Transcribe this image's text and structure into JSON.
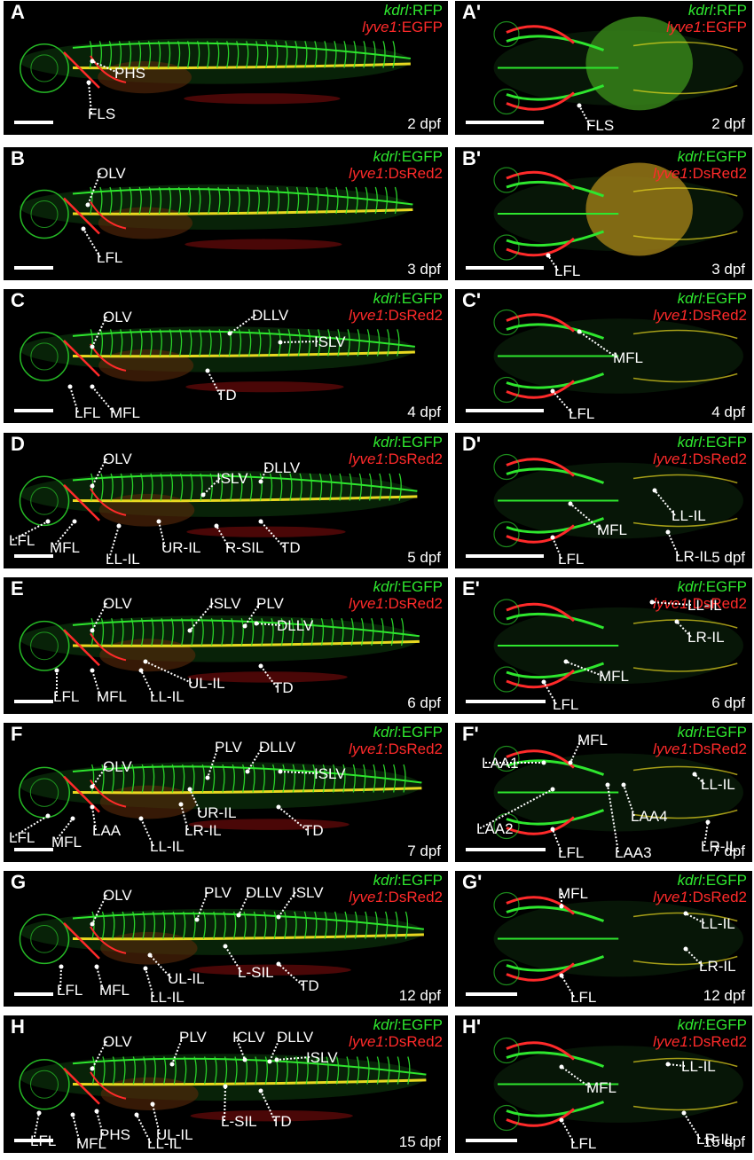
{
  "colors": {
    "green": "#2ee62e",
    "red": "#ff2a2a",
    "yellow": "#e8d820",
    "bg": "#000000"
  },
  "panels": [
    {
      "letter": "A",
      "stage": "2 dpf",
      "green_label": "kdrl",
      "green_suffix": ":RFP",
      "red_label": "lyve1",
      "red_suffix": ":EGFP",
      "labels": [
        "PHS",
        "FLS"
      ]
    },
    {
      "letter": "A'",
      "stage": "2 dpf",
      "green_label": "kdrl",
      "green_suffix": ":RFP",
      "red_label": "lyve1",
      "red_suffix": ":EGFP",
      "labels": [
        "FLS"
      ]
    },
    {
      "letter": "B",
      "stage": "3 dpf",
      "green_label": "kdrl",
      "green_suffix": ":EGFP",
      "red_label": "lyve1",
      "red_suffix": ":DsRed2",
      "labels": [
        "OLV",
        "LFL"
      ]
    },
    {
      "letter": "B'",
      "stage": "3 dpf",
      "green_label": "kdrl",
      "green_suffix": ":EGFP",
      "red_label": "lyve1",
      "red_suffix": ":DsRed2",
      "labels": [
        "LFL"
      ]
    },
    {
      "letter": "C",
      "stage": "4 dpf",
      "green_label": "kdrl",
      "green_suffix": ":EGFP",
      "red_label": "lyve1",
      "red_suffix": ":DsRed2",
      "labels": [
        "OLV",
        "DLLV",
        "ISLV",
        "TD",
        "LFL",
        "MFL"
      ]
    },
    {
      "letter": "C'",
      "stage": "4 dpf",
      "green_label": "kdrl",
      "green_suffix": ":EGFP",
      "red_label": "lyve1",
      "red_suffix": ":DsRed2",
      "labels": [
        "MFL",
        "LFL"
      ]
    },
    {
      "letter": "D",
      "stage": "5 dpf",
      "green_label": "kdrl",
      "green_suffix": ":EGFP",
      "red_label": "lyve1",
      "red_suffix": ":DsRed2",
      "labels": [
        "OLV",
        "ISLV",
        "DLLV",
        "LFL",
        "MFL",
        "LL-IL",
        "UR-IL",
        "R-SIL",
        "TD"
      ]
    },
    {
      "letter": "D'",
      "stage": "5 dpf",
      "green_label": "kdrl",
      "green_suffix": ":EGFP",
      "red_label": "lyve1",
      "red_suffix": ":DsRed2",
      "labels": [
        "MFL",
        "LL-IL",
        "LR-IL",
        "LFL"
      ]
    },
    {
      "letter": "E",
      "stage": "6 dpf",
      "green_label": "kdrl",
      "green_suffix": ":EGFP",
      "red_label": "lyve1",
      "red_suffix": ":DsRed2",
      "labels": [
        "OLV",
        "ISLV",
        "PLV",
        "DLLV",
        "TD",
        "LFL",
        "MFL",
        "LL-IL",
        "UL-IL"
      ]
    },
    {
      "letter": "E'",
      "stage": "6 dpf",
      "green_label": "kdrl",
      "green_suffix": ":EGFP",
      "red_label": "lyve1",
      "red_suffix": ":DsRed2",
      "labels": [
        "LL-IL",
        "LR-IL",
        "MFL",
        "LFL"
      ]
    },
    {
      "letter": "F",
      "stage": "7 dpf",
      "green_label": "kdrl",
      "green_suffix": ":EGFP",
      "red_label": "lyve1",
      "red_suffix": ":DsRed2",
      "labels": [
        "PLV",
        "DLLV",
        "OLV",
        "ISLV",
        "UR-IL",
        "TD",
        "LFL",
        "MFL",
        "LAA",
        "LL-IL",
        "LR-IL"
      ]
    },
    {
      "letter": "F'",
      "stage": "7 dpf",
      "green_label": "kdrl",
      "green_suffix": ":EGFP",
      "red_label": "lyve1",
      "red_suffix": ":DsRed2",
      "labels": [
        "MFL",
        "LAA1",
        "LL-IL",
        "LAA2",
        "LAA4",
        "LR-IL",
        "LFL",
        "LAA3"
      ]
    },
    {
      "letter": "G",
      "stage": "12 dpf",
      "green_label": "kdrl",
      "green_suffix": ":EGFP",
      "red_label": "lyve1",
      "red_suffix": ":DsRed2",
      "labels": [
        "OLV",
        "PLV",
        "DLLV",
        "ISLV",
        "TD",
        "L-SIL",
        "UL-IL",
        "LFL",
        "MFL",
        "LL-IL"
      ]
    },
    {
      "letter": "G'",
      "stage": "12 dpf",
      "green_label": "kdrl",
      "green_suffix": ":EGFP",
      "red_label": "lyve1",
      "red_suffix": ":DsRed2",
      "labels": [
        "MFL",
        "LL-IL",
        "LR-IL",
        "LFL"
      ]
    },
    {
      "letter": "H",
      "stage": "15 dpf",
      "green_label": "kdrl",
      "green_suffix": ":EGFP",
      "red_label": "lyve1",
      "red_suffix": ":DsRed2",
      "labels": [
        "OLV",
        "PLV",
        "ICLV",
        "DLLV",
        "ISLV",
        "L-SIL",
        "TD",
        "LFL",
        "MFL",
        "PHS",
        "UL-IL",
        "LL-IL"
      ]
    },
    {
      "letter": "H'",
      "stage": "15 dpf",
      "green_label": "kdrl",
      "green_suffix": ":EGFP",
      "red_label": "lyve1",
      "red_suffix": ":DsRed2",
      "labels": [
        "MFL",
        "LL-IL",
        "LR-IL",
        "LFL"
      ]
    }
  ]
}
